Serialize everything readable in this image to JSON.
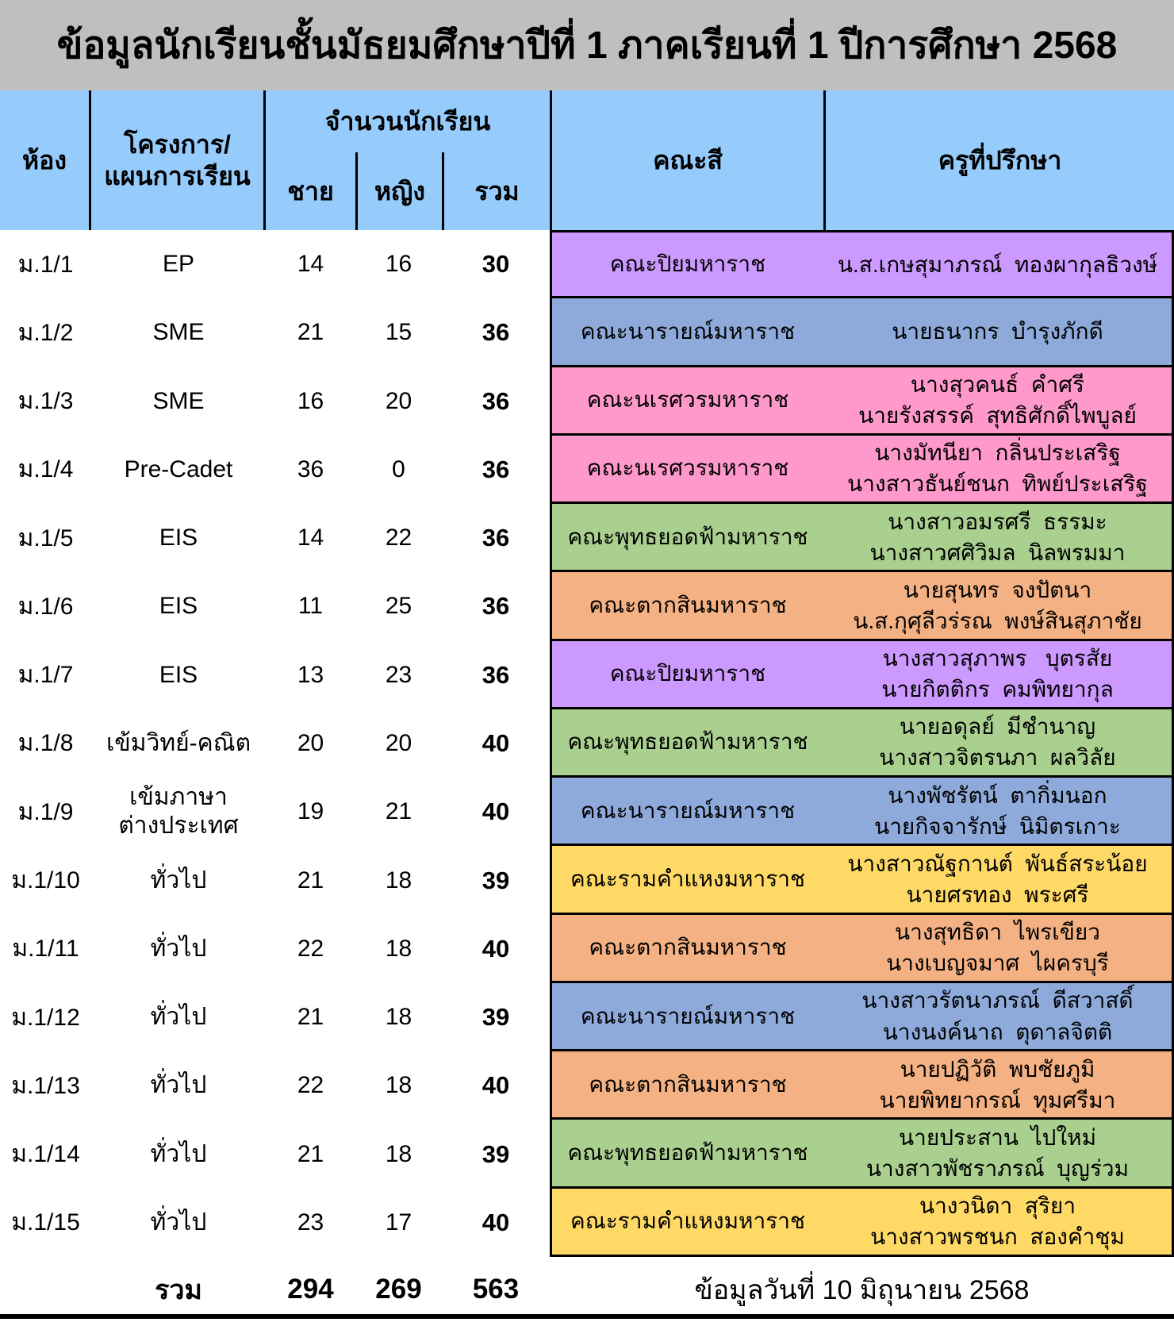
{
  "title": "ข้อมูลนักเรียนชั้นมัธยมศึกษาปีที่ 1 ภาคเรียนที่ 1 ปีการศึกษา 2568",
  "columns": {
    "room": "ห้อง",
    "program": [
      "โครงการ/",
      "แผนการเรียน"
    ],
    "students_group": "จำนวนนักเรียน",
    "male": "ชาย",
    "female": "หญิง",
    "total": "รวม",
    "faculty": "คณะสี",
    "advisor": "ครูที่ปรึกษา"
  },
  "theme": {
    "title_bg": "#BFBFBF",
    "header_bg": "#95CCFC",
    "border": "#000000"
  },
  "faculty_colors": {
    "คณะปิยมหาราช": "#CC99FF",
    "คณะนารายณ์มหาราช": "#8EAADB",
    "คณะนเรศวรมหาราช": "#FF99CC",
    "คณะพุทธยอดฟ้ามหาราช": "#A9D08E",
    "คณะตากสินมหาราช": "#F4B183",
    "คณะรามคำแหงมหาราช": "#FFD966"
  },
  "rows": [
    {
      "room": "ม.1/1",
      "program": [
        "EP"
      ],
      "male": 14,
      "female": 16,
      "total": 30,
      "faculty": "คณะปิยมหาราช",
      "advisors": [
        "น.ส.เกษสุมาภรณ์  ทองผากุลธิวงษ์"
      ]
    },
    {
      "room": "ม.1/2",
      "program": [
        "SME"
      ],
      "male": 21,
      "female": 15,
      "total": 36,
      "faculty": "คณะนารายณ์มหาราช",
      "advisors": [
        "นายธนากร  บำรุงภักดี"
      ]
    },
    {
      "room": "ม.1/3",
      "program": [
        "SME"
      ],
      "male": 16,
      "female": 20,
      "total": 36,
      "faculty": "คณะนเรศวรมหาราช",
      "advisors": [
        "นางสุวคนธ์  คำศรี",
        "นายรังสรรค์  สุทธิศักดิ์ไพบูลย์"
      ]
    },
    {
      "room": "ม.1/4",
      "program": [
        "Pre-Cadet"
      ],
      "male": 36,
      "female": 0,
      "total": 36,
      "faculty": "คณะนเรศวรมหาราช",
      "advisors": [
        "นางมัทนียา  กลิ่นประเสริฐ",
        "นางสาวธันย์ชนก  ทิพย์ประเสริฐ"
      ]
    },
    {
      "room": "ม.1/5",
      "program": [
        "EIS"
      ],
      "male": 14,
      "female": 22,
      "total": 36,
      "faculty": "คณะพุทธยอดฟ้ามหาราช",
      "advisors": [
        "นางสาวอมรศรี  ธรรมะ",
        "นางสาวศศิวิมล  นิลพรมมา"
      ]
    },
    {
      "room": "ม.1/6",
      "program": [
        "EIS"
      ],
      "male": 11,
      "female": 25,
      "total": 36,
      "faculty": "คณะตากสินมหาราช",
      "advisors": [
        "นายสุนทร  จงปัตนา",
        "น.ส.กุศุลีวร่รณ  พงษ์สินสุภาชัย"
      ]
    },
    {
      "room": "ม.1/7",
      "program": [
        "EIS"
      ],
      "male": 13,
      "female": 23,
      "total": 36,
      "faculty": "คณะปิยมหาราช",
      "advisors": [
        "นางสาวสุภาพร   บุตรสัย",
        "นายกิตติกร  คมพิทยากุล"
      ]
    },
    {
      "room": "ม.1/8",
      "program": [
        "เข้มวิทย์-คณิต"
      ],
      "male": 20,
      "female": 20,
      "total": 40,
      "faculty": "คณะพุทธยอดฟ้ามหาราช",
      "advisors": [
        "นายอดุลย์  มีชำนาญ",
        "นางสาวจิตรนภา  ผลวิลัย"
      ]
    },
    {
      "room": "ม.1/9",
      "program": [
        "เข้มภาษา",
        "ต่างประเทศ"
      ],
      "male": 19,
      "female": 21,
      "total": 40,
      "faculty": "คณะนารายณ์มหาราช",
      "advisors": [
        "นางพัชรัตน์  ตากิ่มนอก",
        "นายกิจจารักษ์  นิมิตรเกาะ"
      ]
    },
    {
      "room": "ม.1/10",
      "program": [
        "ทั่วไป"
      ],
      "male": 21,
      "female": 18,
      "total": 39,
      "faculty": "คณะรามคำแหงมหาราช",
      "advisors": [
        "นางสาวณัฐกานต์  พันธ์สระน้อย",
        "นายศรทอง  พระศรี"
      ]
    },
    {
      "room": "ม.1/11",
      "program": [
        "ทั่วไป"
      ],
      "male": 22,
      "female": 18,
      "total": 40,
      "faculty": "คณะตากสินมหาราช",
      "advisors": [
        "นางสุทธิดา  ไพรเขียว",
        "นางเบญจมาศ  ไผครบุรี"
      ]
    },
    {
      "room": "ม.1/12",
      "program": [
        "ทั่วไป"
      ],
      "male": 21,
      "female": 18,
      "total": 39,
      "faculty": "คณะนารายณ์มหาราช",
      "advisors": [
        "นางสาวรัตนาภรณ์  ดีสวาสดิ์",
        "นางนงค์นาถ  ตุดาลจิตติ"
      ]
    },
    {
      "room": "ม.1/13",
      "program": [
        "ทั่วไป"
      ],
      "male": 22,
      "female": 18,
      "total": 40,
      "faculty": "คณะตากสินมหาราช",
      "advisors": [
        "นายปฏิวัติ  พบชัยภูมิ",
        "นายพิทยากรณ์  ทุมศรีมา"
      ]
    },
    {
      "room": "ม.1/14",
      "program": [
        "ทั่วไป"
      ],
      "male": 21,
      "female": 18,
      "total": 39,
      "faculty": "คณะพุทธยอดฟ้ามหาราช",
      "advisors": [
        "นายประสาน  ไปใหม่",
        "นางสาวพัชราภรณ์  บุญร่วม"
      ]
    },
    {
      "room": "ม.1/15",
      "program": [
        "ทั่วไป"
      ],
      "male": 23,
      "female": 17,
      "total": 40,
      "faculty": "คณะรามคำแหงมหาราช",
      "advisors": [
        "นางวนิดา  สุริยา",
        "นางสาวพรชนก  สองคำชุม"
      ]
    }
  ],
  "summary": {
    "label": "รวม",
    "male": 294,
    "female": 269,
    "total": 563
  },
  "footer_note": "ข้อมูลวันที่ 10 มิถุนายน 2568"
}
